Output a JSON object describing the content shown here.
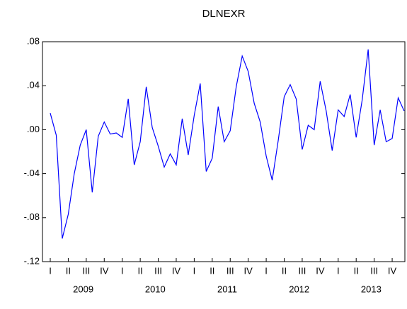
{
  "chart_data": {
    "type": "line",
    "title": "DLNEXR",
    "categories": [
      "I",
      null,
      null,
      "II",
      null,
      null,
      "III",
      null,
      null,
      "IV",
      null,
      null,
      "I",
      null,
      null,
      "II",
      null,
      null,
      "III",
      null,
      null,
      "IV",
      null,
      null,
      "I",
      null,
      null,
      "II",
      null,
      null,
      "III",
      null,
      null,
      "IV",
      null,
      null,
      "I",
      null,
      null,
      "II",
      null,
      null,
      "III",
      null,
      null,
      "IV",
      null,
      null,
      "I",
      null,
      null,
      "II",
      null,
      null,
      "III",
      null,
      null,
      "IV",
      null,
      null
    ],
    "groups": [
      "2009",
      "2010",
      "2011",
      "2012",
      "2013"
    ],
    "values": [
      0.015,
      -0.005,
      -0.099,
      -0.077,
      -0.04,
      -0.014,
      0.0,
      -0.057,
      -0.006,
      0.007,
      -0.004,
      -0.003,
      -0.007,
      0.028,
      -0.032,
      -0.011,
      0.039,
      0.002,
      -0.015,
      -0.034,
      -0.022,
      -0.032,
      0.01,
      -0.023,
      0.013,
      0.042,
      -0.038,
      -0.026,
      0.021,
      -0.011,
      -0.001,
      0.039,
      0.067,
      0.053,
      0.024,
      0.007,
      -0.024,
      -0.046,
      -0.01,
      0.03,
      0.041,
      0.028,
      -0.018,
      0.004,
      0.0,
      0.044,
      0.017,
      -0.019,
      0.018,
      0.012,
      0.032,
      -0.007,
      0.027,
      0.073,
      -0.014,
      0.018,
      -0.011,
      -0.008,
      0.029,
      0.017
    ],
    "color": "#0000ff",
    "ylim": [
      -0.12,
      0.08
    ],
    "yticks": [
      {
        "value": -0.12,
        "label": "-.12"
      },
      {
        "value": -0.08,
        "label": "-.08"
      },
      {
        "value": -0.04,
        "label": "-.04"
      },
      {
        "value": 0,
        "label": ".00"
      },
      {
        "value": 0.04,
        "label": ".04"
      },
      {
        "value": 0.08,
        "label": ".08"
      }
    ]
  }
}
